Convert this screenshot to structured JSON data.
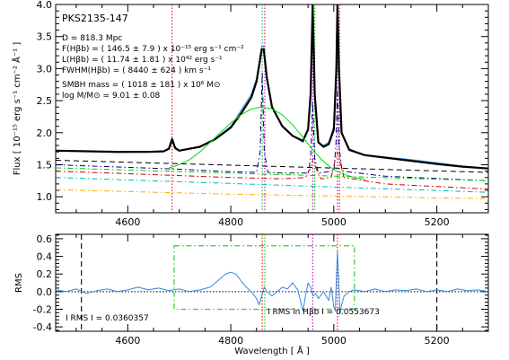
{
  "chart_data": [
    {
      "type": "line",
      "panel": "top",
      "ylabel": "Flux [ 10⁻¹⁵ erg s⁻¹ cm⁻² Å⁻¹ ]",
      "xlim": [
        4460,
        5300
      ],
      "ylim": [
        0.75,
        4.0
      ],
      "xticks": [
        4600,
        4800,
        5000,
        5200
      ],
      "xtick_labels": [
        "4600",
        "4800",
        "5000",
        "5200"
      ],
      "yticks": [
        1.0,
        1.5,
        2.0,
        2.5,
        3.0,
        3.5,
        4.0
      ],
      "ytick_labels": [
        "1.0",
        "1.5",
        "2.0",
        "2.5",
        "3.0",
        "3.5",
        "4.0"
      ],
      "object_name": "PKS2135-147",
      "annotations": [
        "D =  818.3 Mpc",
        "F(Hβb) = (  146.5 ±   7.9 ) x 10⁻¹⁵ erg s⁻¹ cm⁻²",
        "L(Hβb) = (  11.74 ± 1.81 ) x 10⁴² erg s⁻¹",
        "FWHM(Hβb) = (  8440 ±  624 ) km s⁻¹",
        "SMBH mass = ( 1018 ±  181 ) x 10⁶ M⊙",
        "log M/M⊙ =   9.01 ± 0.08"
      ],
      "vlines": [
        {
          "x": 4686,
          "color": "#ff0000",
          "style": "dotted"
        },
        {
          "x": 4861,
          "color": "#00cc00",
          "style": "dotted"
        },
        {
          "x": 4866,
          "color": "#cc00cc",
          "style": "dotted"
        },
        {
          "x": 4959,
          "color": "#cc00cc",
          "style": "dotted"
        },
        {
          "x": 4963,
          "color": "#00cc00",
          "style": "dotted"
        },
        {
          "x": 5007,
          "color": "#cc00cc",
          "style": "dotted"
        },
        {
          "x": 5011,
          "color": "#ff0000",
          "style": "dotted"
        }
      ],
      "series": [
        {
          "color": "#3388dd",
          "style": "solid",
          "width": 1,
          "x": [
            4460,
            4520,
            4580,
            4640,
            4670,
            4680,
            4686,
            4692,
            4700,
            4740,
            4770,
            4800,
            4820,
            4840,
            4850,
            4855,
            4860,
            4864,
            4870,
            4880,
            4900,
            4920,
            4940,
            4950,
            4955,
            4959,
            4963,
            4970,
            4980,
            4990,
            5000,
            5005,
            5007,
            5010,
            5015,
            5030,
            5060,
            5100,
            5150,
            5200,
            5250,
            5300
          ],
          "y": [
            1.72,
            1.71,
            1.69,
            1.7,
            1.7,
            1.76,
            1.9,
            1.78,
            1.72,
            1.78,
            1.9,
            2.1,
            2.35,
            2.6,
            2.85,
            3.1,
            3.35,
            3.35,
            2.9,
            2.4,
            2.1,
            1.95,
            1.85,
            2.05,
            2.6,
            4.0,
            2.6,
            1.85,
            1.8,
            1.85,
            2.1,
            3.0,
            4.0,
            3.0,
            2.0,
            1.75,
            1.65,
            1.62,
            1.58,
            1.53,
            1.48,
            1.44
          ]
        },
        {
          "color": "#000000",
          "style": "solid",
          "width": 2.2,
          "x": [
            4460,
            4520,
            4580,
            4640,
            4670,
            4680,
            4686,
            4692,
            4700,
            4740,
            4770,
            4800,
            4820,
            4840,
            4850,
            4855,
            4860,
            4864,
            4870,
            4880,
            4900,
            4920,
            4940,
            4950,
            4955,
            4959,
            4963,
            4970,
            4980,
            4990,
            5000,
            5005,
            5007,
            5010,
            5015,
            5030,
            5060,
            5100,
            5150,
            5200,
            5250,
            5300
          ],
          "y": [
            1.72,
            1.71,
            1.7,
            1.7,
            1.71,
            1.75,
            1.9,
            1.76,
            1.72,
            1.78,
            1.9,
            2.08,
            2.3,
            2.55,
            2.8,
            3.05,
            3.3,
            3.3,
            2.85,
            2.4,
            2.1,
            1.95,
            1.87,
            2.05,
            2.6,
            4.0,
            2.6,
            1.85,
            1.78,
            1.82,
            2.05,
            3.0,
            4.0,
            3.0,
            2.0,
            1.73,
            1.65,
            1.61,
            1.56,
            1.51,
            1.47,
            1.44
          ]
        },
        {
          "color": "#00dd00",
          "style": "solid",
          "width": 1,
          "x": [
            4680,
            4700,
            4720,
            4740,
            4760,
            4780,
            4800,
            4820,
            4840,
            4860,
            4880,
            4900,
            4920,
            4940,
            4960,
            4980,
            5000,
            5020,
            5040,
            5060
          ],
          "y": [
            1.45,
            1.5,
            1.58,
            1.7,
            1.85,
            2.0,
            2.15,
            2.28,
            2.37,
            2.4,
            2.37,
            2.28,
            2.12,
            1.93,
            1.72,
            1.55,
            1.42,
            1.35,
            1.3,
            1.27
          ]
        },
        {
          "color": "#000000",
          "style": "dashed",
          "width": 1,
          "x": [
            4460,
            5300
          ],
          "y": [
            1.57,
            1.38
          ]
        },
        {
          "color": "#000088",
          "style": "dashdot",
          "width": 1,
          "x": [
            4460,
            4700,
            4800,
            4850,
            4857,
            4861,
            4865,
            4872,
            4900,
            4950,
            4955,
            4959,
            4963,
            4970,
            5000,
            5004,
            5007,
            5010,
            5016,
            5100,
            5300
          ],
          "y": [
            1.5,
            1.43,
            1.39,
            1.38,
            1.7,
            2.95,
            1.7,
            1.38,
            1.37,
            1.37,
            1.6,
            2.5,
            1.6,
            1.37,
            1.4,
            1.8,
            2.7,
            1.8,
            1.4,
            1.32,
            1.25
          ]
        },
        {
          "color": "#cc0000",
          "style": "dashdot",
          "width": 1,
          "x": [
            4460,
            4700,
            4800,
            4900,
            4945,
            4955,
            4960,
            4965,
            4975,
            4995,
            5002,
            5007,
            5012,
            5020,
            5100,
            5300
          ],
          "y": [
            1.4,
            1.33,
            1.3,
            1.28,
            1.3,
            1.45,
            1.6,
            1.45,
            1.28,
            1.3,
            1.55,
            1.7,
            1.55,
            1.3,
            1.2,
            1.12
          ]
        },
        {
          "color": "#00cc00",
          "style": "dashdot",
          "width": 1,
          "x": [
            4460,
            5300
          ],
          "y": [
            1.45,
            1.25
          ]
        },
        {
          "color": "#00bbbb",
          "style": "dashdot",
          "width": 1,
          "x": [
            4460,
            5300
          ],
          "y": [
            1.3,
            1.07
          ]
        },
        {
          "color": "#ffaa00",
          "style": "dashdot",
          "width": 1,
          "x": [
            4460,
            4800,
            5000,
            5300
          ],
          "y": [
            1.11,
            1.04,
            1.01,
            0.97
          ]
        }
      ]
    },
    {
      "type": "line",
      "panel": "bottom",
      "xlabel": "Wavelength [ Å ]",
      "ylabel": "RMS",
      "xlim": [
        4460,
        5300
      ],
      "ylim": [
        -0.45,
        0.65
      ],
      "xticks": [
        4600,
        4800,
        5000,
        5200
      ],
      "xtick_labels": [
        "4600",
        "4800",
        "5000",
        "5200"
      ],
      "yticks": [
        -0.4,
        -0.2,
        0.0,
        0.2,
        0.4,
        0.6
      ],
      "ytick_labels": [
        "-0.4",
        "-0.2",
        "0.0",
        "0.2",
        "0.4",
        "0.6"
      ],
      "rms_total_label": "I RMS I =  0.0360357",
      "rms_hb_label": "I RMS in Hβb I =  0.0553673",
      "vlines": [
        {
          "x": 4510,
          "color": "#000000",
          "style": "dashed"
        },
        {
          "x": 4861,
          "color": "#ff0000",
          "style": "dotted"
        },
        {
          "x": 4866,
          "color": "#00cc00",
          "style": "dotted"
        },
        {
          "x": 4959,
          "color": "#cc00cc",
          "style": "dotted"
        },
        {
          "x": 5007,
          "color": "#ff0000",
          "style": "dotted"
        },
        {
          "x": 5200,
          "color": "#000000",
          "style": "dashed"
        }
      ],
      "hline": {
        "y": 0.0,
        "color": "#000000",
        "style": "dotted"
      },
      "window": {
        "x": [
          4690,
          5040
        ],
        "y": [
          -0.2,
          0.52
        ],
        "color": "#33cc33",
        "style": "dashdot"
      },
      "series": [
        {
          "color": "#3388dd",
          "style": "solid",
          "width": 1,
          "x": [
            4460,
            4480,
            4500,
            4520,
            4540,
            4560,
            4580,
            4600,
            4620,
            4640,
            4660,
            4680,
            4700,
            4720,
            4740,
            4760,
            4770,
            4780,
            4790,
            4800,
            4810,
            4820,
            4830,
            4840,
            4850,
            4855,
            4860,
            4865,
            4870,
            4880,
            4890,
            4900,
            4910,
            4920,
            4930,
            4935,
            4940,
            4945,
            4950,
            4955,
            4960,
            4965,
            4970,
            4980,
            4990,
            4995,
            5000,
            5003,
            5005,
            5007,
            5009,
            5012,
            5015,
            5020,
            5030,
            5040,
            5060,
            5080,
            5100,
            5120,
            5140,
            5160,
            5180,
            5200,
            5220,
            5240,
            5260,
            5280,
            5300
          ],
          "y": [
            0.02,
            0.0,
            0.03,
            -0.02,
            0.01,
            0.03,
            0.0,
            0.02,
            0.05,
            0.02,
            0.04,
            0.01,
            0.03,
            0.0,
            0.02,
            0.05,
            0.1,
            0.15,
            0.2,
            0.22,
            0.2,
            0.12,
            0.05,
            0.0,
            -0.08,
            -0.15,
            -0.05,
            0.05,
            0.0,
            -0.05,
            0.0,
            0.05,
            0.03,
            0.1,
            0.02,
            -0.1,
            -0.22,
            -0.05,
            0.1,
            0.05,
            -0.05,
            -0.02,
            -0.08,
            0.0,
            -0.1,
            0.05,
            -0.18,
            -0.22,
            0.15,
            0.45,
            0.2,
            -0.25,
            -0.15,
            -0.05,
            0.0,
            0.02,
            0.0,
            0.03,
            0.0,
            0.02,
            0.01,
            0.03,
            0.0,
            0.02,
            0.0,
            0.03,
            0.01,
            0.02,
            0.0
          ]
        }
      ]
    }
  ]
}
